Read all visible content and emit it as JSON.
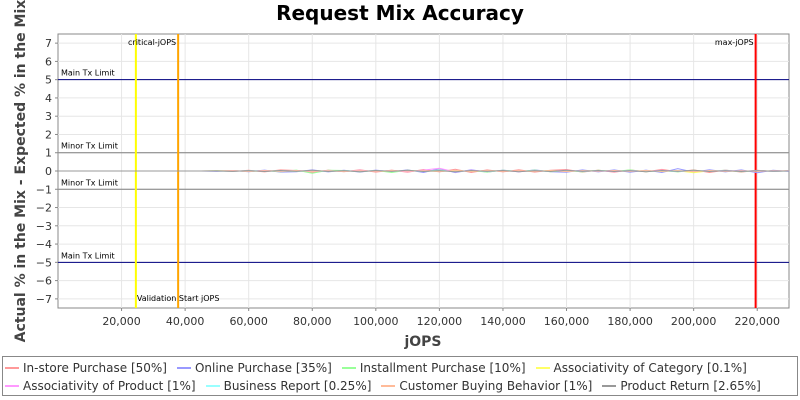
{
  "chart_data": {
    "type": "line",
    "title": "Request Mix Accuracy",
    "xlabel": "jOPS",
    "ylabel": "Actual % in the Mix - Expected % in the Mix",
    "xlim": [
      0,
      230000
    ],
    "ylim": [
      -7.5,
      7.5
    ],
    "xticks": [
      20000,
      40000,
      60000,
      80000,
      100000,
      120000,
      140000,
      160000,
      180000,
      200000,
      220000
    ],
    "xtick_labels": [
      "20,000",
      "40,000",
      "60,000",
      "80,000",
      "100,000",
      "120,000",
      "140,000",
      "160,000",
      "180,000",
      "200,000",
      "220,000"
    ],
    "yticks": [
      -7,
      -6,
      -5,
      -4,
      -3,
      -2,
      -1,
      0,
      1,
      2,
      3,
      4,
      5,
      6,
      7
    ],
    "grid": true,
    "legend_position": "bottom",
    "thresholds": [
      {
        "label": "Main Tx Limit",
        "y": 5,
        "color": "#000080"
      },
      {
        "label": "Minor Tx Limit",
        "y": 1,
        "color": "#808080"
      },
      {
        "label": "Minor Tx Limit",
        "y": -1,
        "color": "#808080"
      },
      {
        "label": "Main Tx Limit",
        "y": -5,
        "color": "#000080"
      }
    ],
    "markers": [
      {
        "label": "Validation Start jOPS",
        "x": 24500,
        "color": "#ffff00"
      },
      {
        "label": "critical-jOPS",
        "x": 37800,
        "color": "#ffa500"
      },
      {
        "label": "max-jOPS",
        "x": 219500,
        "color": "#ff0000"
      }
    ],
    "series": [
      {
        "name": "In-store Purchase [50%]",
        "color": "#ff9999"
      },
      {
        "name": "Online Purchase [35%]",
        "color": "#9999ff"
      },
      {
        "name": "Installment Purchase [10%]",
        "color": "#99ff99"
      },
      {
        "name": "Associativity of Category [0.1%]",
        "color": "#ffff66"
      },
      {
        "name": "Associativity of Product [1%]",
        "color": "#ff99ff"
      },
      {
        "name": "Business Report [0.25%]",
        "color": "#99ffff"
      },
      {
        "name": "Customer Buying Behavior [1%]",
        "color": "#ffbb99"
      },
      {
        "name": "Product Return [2.65%]",
        "color": "#999999"
      }
    ],
    "series_x": [
      0,
      5000,
      10000,
      15000,
      20000,
      25000,
      30000,
      35000,
      40000,
      45000,
      50000,
      55000,
      60000,
      65000,
      70000,
      75000,
      80000,
      85000,
      90000,
      95000,
      100000,
      105000,
      110000,
      115000,
      120000,
      125000,
      130000,
      135000,
      140000,
      145000,
      150000,
      155000,
      160000,
      165000,
      170000,
      175000,
      180000,
      185000,
      190000,
      195000,
      200000,
      205000,
      210000,
      215000,
      220000,
      225000,
      230000
    ],
    "series_y": [
      [
        0,
        0,
        0,
        0,
        0,
        0,
        0,
        0,
        0,
        0,
        0.02,
        -0.03,
        0.04,
        -0.05,
        0.06,
        0.03,
        -0.08,
        0.05,
        -0.04,
        0.07,
        -0.06,
        0.05,
        -0.07,
        0.08,
        -0.05,
        0.1,
        -0.08,
        0.06,
        -0.05,
        0.07,
        -0.06,
        0.04,
        0.08,
        -0.06,
        0.05,
        -0.07,
        0.06,
        -0.05,
        0.09,
        -0.04,
        0.06,
        -0.08,
        0.05,
        -0.06,
        0.04,
        -0.03,
        0.02
      ],
      [
        0,
        0,
        0,
        0,
        0,
        0,
        0,
        0,
        0,
        0,
        -0.02,
        0.03,
        -0.04,
        0.05,
        -0.06,
        -0.04,
        0.06,
        -0.05,
        0.04,
        -0.06,
        0.05,
        -0.04,
        0.06,
        -0.08,
        0.12,
        -0.09,
        0.07,
        -0.06,
        0.05,
        -0.05,
        0.06,
        -0.04,
        -0.07,
        0.06,
        -0.05,
        0.06,
        -0.07,
        0.05,
        -0.08,
        0.13,
        -0.06,
        0.07,
        -0.05,
        0.06,
        -0.1,
        0.04,
        -0.02
      ],
      [
        0,
        0,
        0,
        0,
        0,
        0,
        0,
        0,
        0,
        0,
        0.01,
        0.02,
        -0.03,
        0.02,
        -0.04,
        0.05,
        -0.12,
        0.04,
        0.03,
        -0.04,
        0.03,
        -0.08,
        0.04,
        -0.03,
        0.05,
        -0.04,
        0.03,
        -0.06,
        0.04,
        -0.03,
        0.05,
        -0.04,
        0.03,
        -0.05,
        0.04,
        -0.03,
        0.06,
        -0.04,
        0.03,
        -0.05,
        0.04,
        -0.03,
        0.05,
        -0.04,
        0.03,
        -0.02,
        0.01
      ],
      [
        0,
        0,
        0,
        0,
        0,
        0,
        0,
        0,
        0,
        0,
        0,
        0.01,
        -0.01,
        0.01,
        0,
        -0.01,
        0.01,
        0,
        -0.01,
        0.01,
        0,
        -0.02,
        0.01,
        0,
        -0.01,
        0.02,
        -0.01,
        0,
        0.01,
        -0.02,
        0,
        0.01,
        -0.01,
        0,
        0.02,
        -0.01,
        0,
        0.01,
        -0.02,
        0.01,
        -0.1,
        0.01,
        0,
        -0.01,
        0.01,
        0,
        0
      ],
      [
        0,
        0,
        0,
        0,
        0,
        0,
        0,
        0,
        0,
        0,
        0,
        0.02,
        -0.02,
        0.03,
        -0.02,
        0.03,
        -0.03,
        0.02,
        -0.03,
        0.04,
        -0.02,
        0.03,
        -0.04,
        0.05,
        0.15,
        -0.05,
        0.04,
        -0.03,
        0.03,
        -0.04,
        0.03,
        -0.02,
        0.04,
        -0.03,
        0.02,
        -0.04,
        0.03,
        -0.02,
        0.04,
        -0.03,
        0.02,
        -0.03,
        0.04,
        -0.02,
        0.03,
        -0.02,
        0.01
      ],
      [
        0,
        0,
        0,
        0,
        0,
        0,
        0,
        0,
        0,
        0,
        0,
        -0.01,
        0.02,
        -0.01,
        0.02,
        -0.02,
        0.01,
        -0.02,
        0.02,
        -0.01,
        0.02,
        -0.02,
        0.01,
        -0.02,
        0.03,
        -0.02,
        0.01,
        -0.03,
        0.02,
        -0.01,
        0.02,
        -0.02,
        0.01,
        -0.02,
        0.03,
        -0.01,
        0.02,
        -0.02,
        0.01,
        -0.03,
        0.02,
        -0.01,
        0.02,
        -0.02,
        0.01,
        -0.01,
        0
      ],
      [
        0,
        0,
        0,
        0,
        0,
        0,
        0,
        0,
        0,
        0,
        0,
        0.01,
        -0.02,
        0.02,
        -0.01,
        0.03,
        -0.02,
        0.01,
        -0.03,
        0.02,
        -0.02,
        0.03,
        -0.01,
        0.02,
        -0.03,
        0.02,
        -0.02,
        0.03,
        -0.02,
        0.01,
        -0.02,
        0.02,
        -0.03,
        0.02,
        -0.01,
        0.03,
        -0.02,
        0.02,
        -0.01,
        0.02,
        -0.03,
        0.02,
        -0.02,
        0.01,
        -0.02,
        0.01,
        0
      ],
      [
        0,
        0,
        0,
        0,
        0,
        0,
        0,
        0,
        0,
        0,
        0,
        -0.02,
        0.02,
        -0.03,
        0.03,
        -0.02,
        0.04,
        -0.03,
        0.02,
        -0.04,
        0.03,
        -0.02,
        0.04,
        -0.03,
        0.02,
        -0.04,
        0.03,
        -0.02,
        0.03,
        -0.04,
        0.02,
        -0.03,
        0.04,
        -0.02,
        0.03,
        -0.03,
        0.02,
        -0.04,
        0.03,
        -0.02,
        0.04,
        -0.03,
        0.02,
        -0.03,
        0.02,
        -0.01,
        0
      ]
    ]
  }
}
